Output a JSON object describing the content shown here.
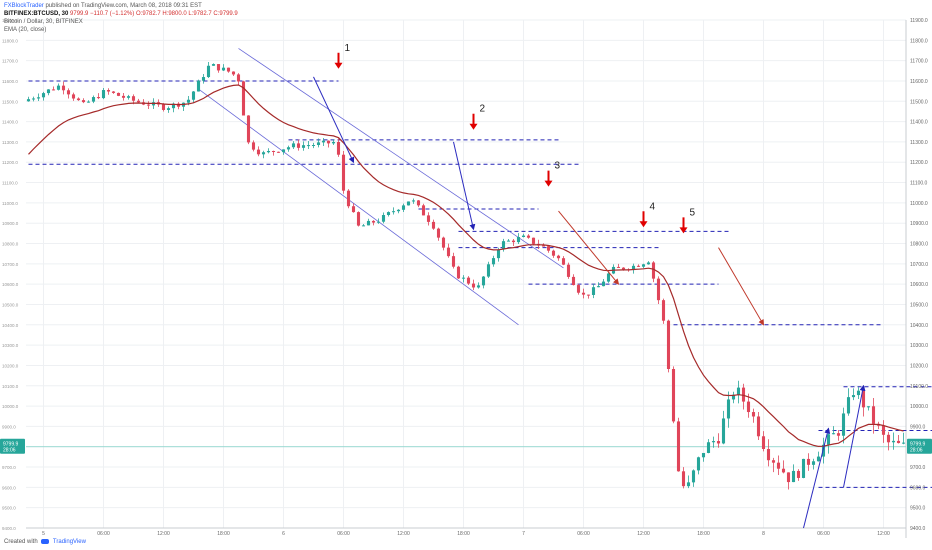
{
  "header": {
    "user": "FXBlockTrader",
    "published_text": "published on TradingView.com, March 08, 2018 09:31 EST",
    "symbol_line": "BITFINEX:BTCUSD, 30",
    "values": [
      "9799.9",
      "−110.7 (−1.12%)",
      "O:9782.7",
      "H:9800.0",
      "L:9782.7",
      "C:9799.9"
    ],
    "subtitle": "Bitcoin / Dollar, 30, BITFINEX",
    "indicator": "EMA (20, close)"
  },
  "footer": {
    "created_with": "Created with",
    "brand": "TradingView"
  },
  "chart_data": {
    "type": "candlestick",
    "ylim": [
      9400,
      11900
    ],
    "y_ticks": [
      "9400.0",
      "9500.0",
      "9600.0",
      "9700.0",
      "9800.0",
      "9900.0",
      "10000.0",
      "10100.0",
      "10200.0",
      "10300.0",
      "10400.0",
      "10500.0",
      "10600.0",
      "10700.0",
      "10800.0",
      "10900.0",
      "11000.0",
      "11100.0",
      "11200.0",
      "11300.0",
      "11400.0",
      "11500.0",
      "11600.0",
      "11700.0",
      "11800.0",
      "11900.0"
    ],
    "x_ticks": [
      {
        "label": "5",
        "i": 3
      },
      {
        "label": "06:00",
        "i": 15
      },
      {
        "label": "12:00",
        "i": 27
      },
      {
        "label": "18:00",
        "i": 39
      },
      {
        "label": "6",
        "i": 51
      },
      {
        "label": "06:00",
        "i": 63
      },
      {
        "label": "12:00",
        "i": 75
      },
      {
        "label": "18:00",
        "i": 87
      },
      {
        "label": "7",
        "i": 99
      },
      {
        "label": "06:00",
        "i": 111
      },
      {
        "label": "12:00",
        "i": 123
      },
      {
        "label": "18:00",
        "i": 135
      },
      {
        "label": "8",
        "i": 147
      },
      {
        "label": "06:00",
        "i": 159
      },
      {
        "label": "12:00",
        "i": 171
      }
    ],
    "last_price": "9799.9",
    "last_price_sub": "28:06",
    "annotations": [
      "1",
      "2",
      "3",
      "4",
      "5"
    ],
    "colors": {
      "up": "#26a69a",
      "down": "#e0455a",
      "ema": "#a52a2a",
      "levels": "#2323b5",
      "arrows": "#e00000"
    }
  }
}
